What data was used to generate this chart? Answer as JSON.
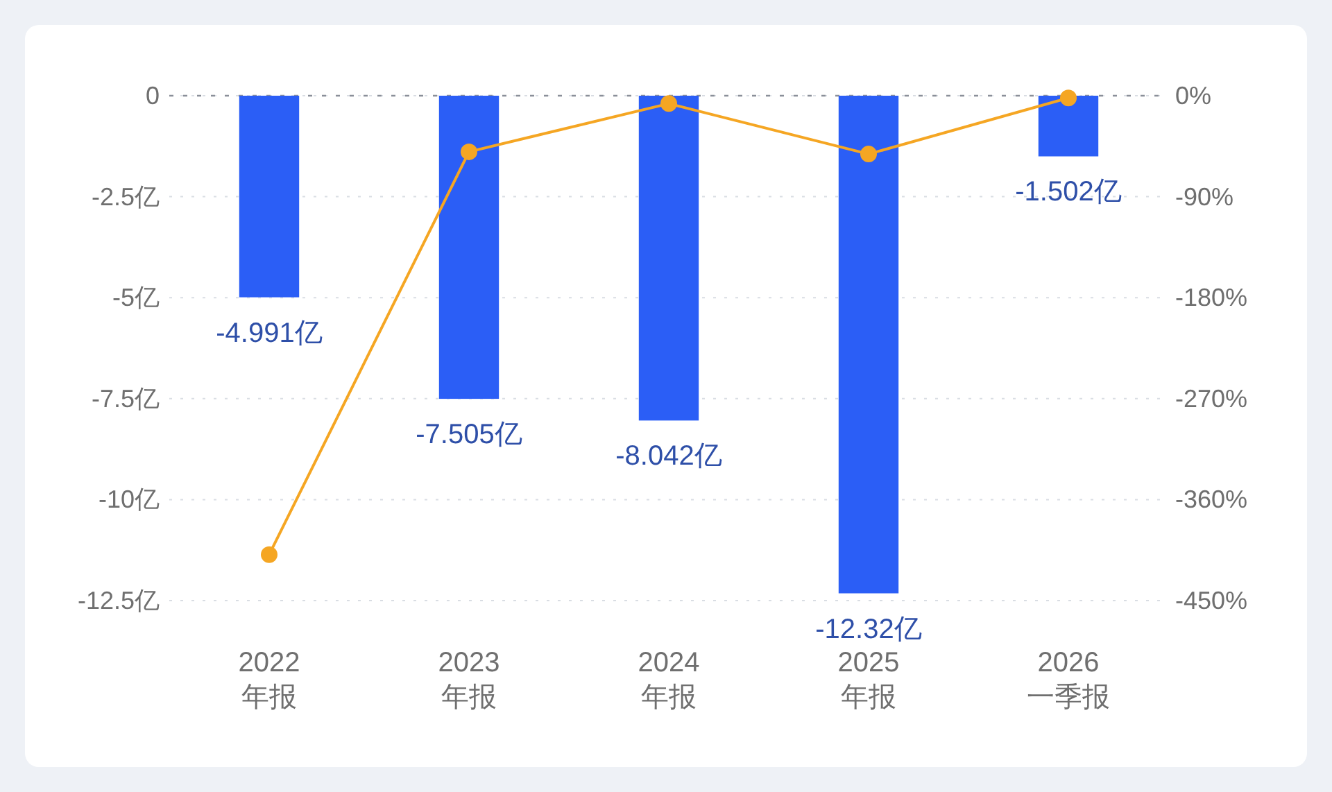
{
  "chart_data": {
    "type": "bar",
    "categories": [
      "2022\n年报",
      "2023\n年报",
      "2024\n年报",
      "2025\n年报",
      "2026\n一季报"
    ],
    "series": [
      {
        "color": "#2b5ef6",
        "values": [
          -4.991,
          -7.505,
          -8.042,
          -12.32,
          -1.502
        ],
        "value_labels": [
          "-4.991亿",
          "-7.505亿",
          "-8.042亿",
          "-12.32亿",
          "-1.502亿"
        ]
      },
      {
        "type": "line",
        "axis": "y2",
        "color": "#f5a623",
        "values": [
          -409,
          -50,
          -7,
          -52,
          -2
        ]
      }
    ],
    "ylim": [
      -12.5,
      0
    ],
    "yticks": [
      {
        "value": -12.5,
        "label": "-12.5亿"
      },
      {
        "value": -10,
        "label": "-10亿"
      },
      {
        "value": -7.5,
        "label": "-7.5亿"
      },
      {
        "value": -5,
        "label": "-5亿"
      },
      {
        "value": -2.5,
        "label": "-2.5亿"
      },
      0
    ],
    "y2lim": [
      -450,
      0
    ],
    "y2ticks": [
      {
        "value": -450,
        "label": "-450%"
      },
      {
        "value": -360,
        "label": "-360%"
      },
      {
        "value": -270,
        "label": "-270%"
      },
      {
        "value": -180,
        "label": "-180%"
      },
      {
        "value": -90,
        "label": "-90%"
      },
      {
        "value": 0,
        "label": "0%"
      }
    ],
    "grid": "y",
    "marker": "circle"
  }
}
